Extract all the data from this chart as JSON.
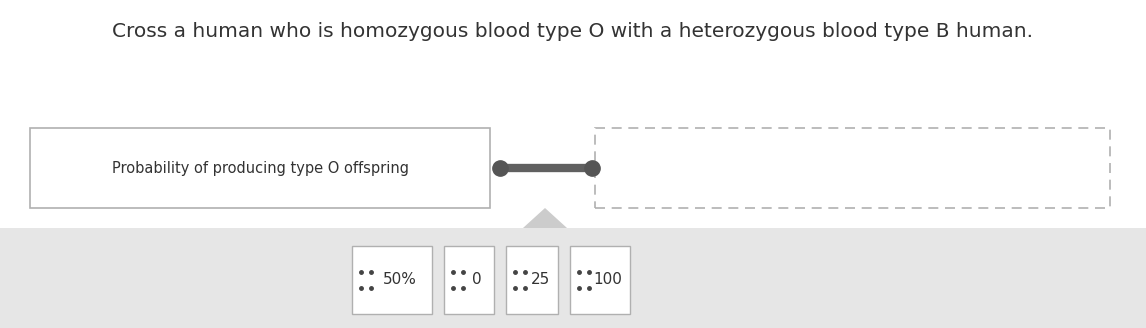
{
  "title": "Cross a human who is homozygous blood type O with a heterozygous blood type B human.",
  "title_fontsize": 14.5,
  "title_color": "#333333",
  "label_text": "Probability of producing type O offspring",
  "label_fontsize": 10.5,
  "bg_color": "#ffffff",
  "bottom_bg_color": "#e6e6e6",
  "box_edge_color": "#b0b0b0",
  "dashed_color": "#b0b0b0",
  "dot_color": "#555555",
  "line_color": "#606060",
  "answer_boxes": [
    {
      "label": "50%"
    },
    {
      "label": "0"
    },
    {
      "label": "25"
    },
    {
      "label": "100"
    }
  ],
  "answer_fontsize": 11,
  "answer_dot_color": "#444444"
}
